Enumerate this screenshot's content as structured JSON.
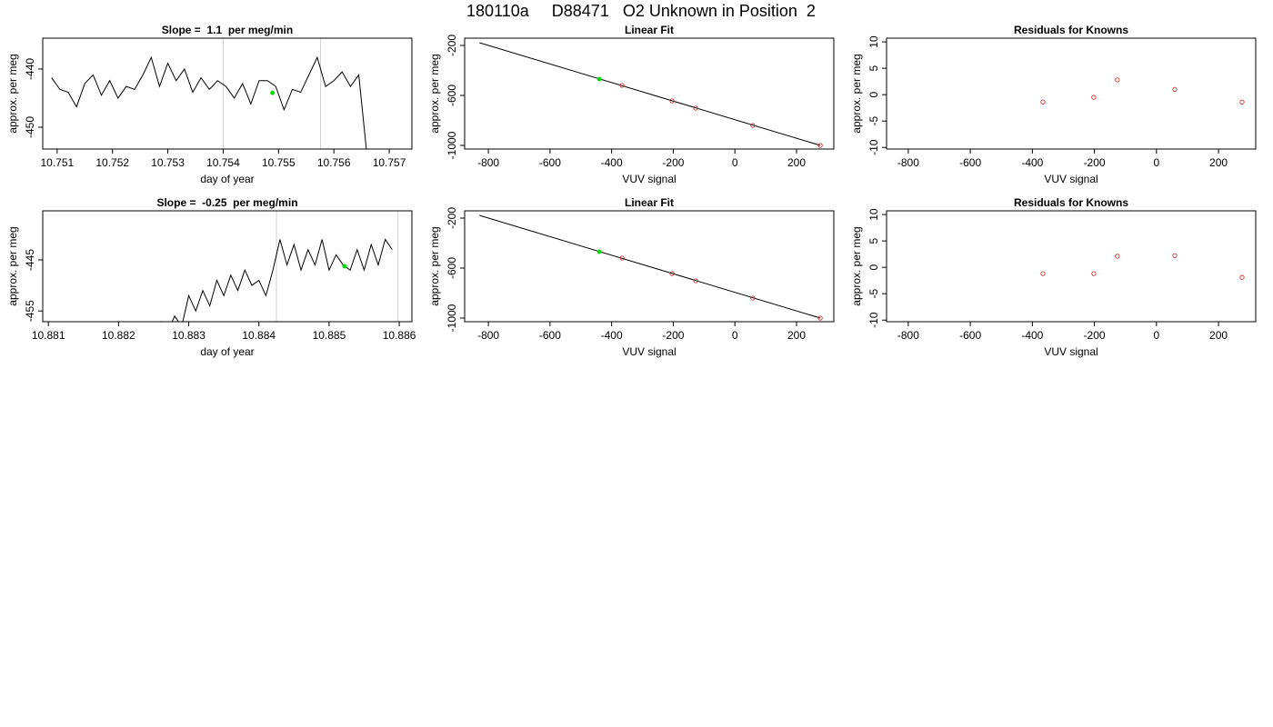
{
  "title": "180110a     D88471   O2 Unknown in Position  2",
  "chart_data": [
    {
      "type": "line",
      "title": "Slope =  1.1  per meg/min",
      "xlabel": "day of year",
      "ylabel": "approx. per meg",
      "xlim": [
        10.75074,
        10.75741
      ],
      "xticks": [
        10.751,
        10.752,
        10.753,
        10.754,
        10.755,
        10.756,
        10.757
      ],
      "ylim": [
        -453.75,
        -434.7
      ],
      "yticks": [
        -450,
        -440
      ],
      "x": [
        10.7509,
        10.75105,
        10.7512,
        10.75135,
        10.7515,
        10.75165,
        10.7518,
        10.75195,
        10.7521,
        10.75225,
        10.7524,
        10.75255,
        10.7527,
        10.75285,
        10.753,
        10.75315,
        10.7533,
        10.75345,
        10.7536,
        10.75375,
        10.7539,
        10.75405,
        10.7542,
        10.75435,
        10.7545,
        10.75465,
        10.7548,
        10.75495,
        10.7551,
        10.75525,
        10.7554,
        10.75555,
        10.7557,
        10.75585,
        10.756,
        10.75615,
        10.7563,
        10.75645,
        10.7566
      ],
      "values": [
        -441.5,
        -443.5,
        -444,
        -446.5,
        -442.5,
        -441,
        -444.5,
        -442,
        -445,
        -443,
        -443.5,
        -441,
        -438,
        -443,
        -439,
        -442,
        -440,
        -444,
        -441.5,
        -443.5,
        -442,
        -443,
        -445,
        -442.5,
        -446,
        -442,
        -442,
        -443,
        -447,
        -443.5,
        -444,
        -441,
        -438,
        -443,
        -442,
        -440.5,
        -443,
        -441,
        -455
      ],
      "color": "#000000",
      "vlines": {
        "values": [
          10.754,
          10.75576
        ],
        "color": "#d3d3d3"
      },
      "marker": {
        "x": [
          10.75489
        ],
        "values": [
          -444.1
        ],
        "color": "#00dd00"
      }
    },
    {
      "type": "scatter",
      "title": "Linear Fit",
      "xlabel": "VUV signal",
      "ylabel": "approx. per meg",
      "xlim": [
        -877,
        321
      ],
      "xticks": [
        -800,
        -600,
        -400,
        -200,
        0,
        200
      ],
      "ylim": [
        -1029,
        -141.8
      ],
      "yticks": [
        -1000,
        -600,
        -200
      ],
      "knowns": {
        "x": [
          -366,
          -204,
          -127,
          58,
          277
        ],
        "values": [
          -520,
          -644,
          -702,
          -840,
          -1000
        ],
        "color": "#cc3333"
      },
      "unknown": {
        "x": [
          -440
        ],
        "values": [
          -469
        ],
        "color": "#00dd00"
      },
      "fit": {
        "x": [
          -829,
          277
        ],
        "values": [
          -178,
          -1000
        ],
        "color": "#000000"
      }
    },
    {
      "type": "scatter",
      "title": "Residuals for Knowns",
      "xlabel": "VUV signal",
      "ylabel": "approx. per meg",
      "xlim": [
        -870,
        320
      ],
      "xticks": [
        -800,
        -600,
        -400,
        -200,
        0,
        200
      ],
      "ylim": [
        -10.3,
        10.7
      ],
      "yticks": [
        -10,
        -5,
        0,
        5,
        10
      ],
      "knowns": {
        "x": [
          -366,
          -202,
          -126,
          59,
          276
        ],
        "values": [
          -1.4,
          -0.5,
          2.8,
          1.0,
          -1.4
        ],
        "color": "#cc3333"
      }
    },
    {
      "type": "line",
      "title": "Slope =  -0.25  per meg/min",
      "xlabel": "day of year",
      "ylabel": "approx. per meg",
      "xlim": [
        10.88092,
        10.88618
      ],
      "xticks": [
        10.881,
        10.882,
        10.883,
        10.884,
        10.885,
        10.886
      ],
      "ylim": [
        -457.1,
        -435.4
      ],
      "yticks": [
        -455,
        -445
      ],
      "x": [
        10.8826,
        10.8827,
        10.8828,
        10.8829,
        10.883,
        10.8831,
        10.8832,
        10.8833,
        10.8834,
        10.8835,
        10.8836,
        10.8837,
        10.8838,
        10.8839,
        10.884,
        10.8841,
        10.8842,
        10.8843,
        10.8844,
        10.8845,
        10.8846,
        10.8847,
        10.8848,
        10.8849,
        10.885,
        10.8851,
        10.8852,
        10.8853,
        10.8854,
        10.8855,
        10.8856,
        10.8857,
        10.8858,
        10.8859
      ],
      "values": [
        -457,
        -459,
        -456,
        -458,
        -452,
        -455,
        -451,
        -454,
        -449,
        -452,
        -448,
        -451,
        -447,
        -450,
        -449,
        -452,
        -447,
        -441,
        -446,
        -442,
        -447,
        -443,
        -446,
        -441,
        -447,
        -444,
        -446,
        -447,
        -443,
        -447,
        -442,
        -446,
        -441,
        -443
      ],
      "color": "#000000",
      "vlines": {
        "values": [
          10.88425,
          10.88598
        ],
        "color": "#d3d3d3"
      },
      "marker": {
        "x": [
          10.88522
        ],
        "values": [
          -446.25
        ],
        "color": "#00dd00"
      }
    },
    {
      "type": "scatter",
      "title": "Linear Fit",
      "xlabel": "VUV signal",
      "ylabel": "approx. per meg",
      "xlim": [
        -877,
        321
      ],
      "xticks": [
        -800,
        -600,
        -400,
        -200,
        0,
        200
      ],
      "ylim": [
        -1029,
        -141.8
      ],
      "yticks": [
        -1000,
        -600,
        -200
      ],
      "knowns": {
        "x": [
          -366,
          -204,
          -127,
          58,
          277
        ],
        "values": [
          -520,
          -644,
          -702,
          -840,
          -1000
        ],
        "color": "#cc3333"
      },
      "unknown": {
        "x": [
          -440
        ],
        "values": [
          -469
        ],
        "color": "#00dd00"
      },
      "fit": {
        "x": [
          -829,
          277
        ],
        "values": [
          -178,
          -1000
        ],
        "color": "#000000"
      }
    },
    {
      "type": "scatter",
      "title": "Residuals for Knowns",
      "xlabel": "VUV signal",
      "ylabel": "approx. per meg",
      "xlim": [
        -870,
        320
      ],
      "xticks": [
        -800,
        -600,
        -400,
        -200,
        0,
        200
      ],
      "ylim": [
        -10.3,
        10.7
      ],
      "yticks": [
        -10,
        -5,
        0,
        5,
        10
      ],
      "knowns": {
        "x": [
          -366,
          -202,
          -126,
          59,
          276
        ],
        "values": [
          -1.2,
          -1.2,
          2.1,
          2.2,
          -1.9
        ],
        "color": "#cc3333"
      }
    }
  ]
}
